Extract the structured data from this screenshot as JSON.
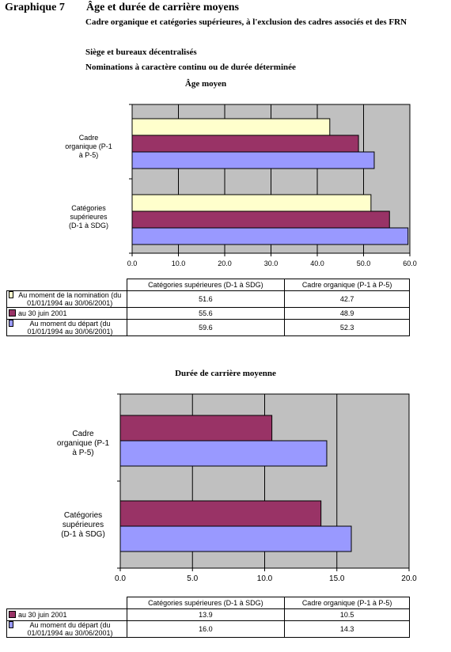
{
  "header": {
    "label": "Graphique 7",
    "title": "Âge et durée de carrière moyens",
    "subtitle_lines": [
      "Cadre organique et catégories supérieures, à l'exclusion des cadres associés et des FRN",
      "Siège et bureaux décentralisés",
      "Nominations à caractère continu ou de durée déterminée"
    ]
  },
  "colors": {
    "yellow": "#ffffcc",
    "maroon": "#993366",
    "lavender": "#9999ff",
    "plot_bg": "#c0c0c0"
  },
  "chart_data": [
    {
      "type": "bar",
      "orientation": "horizontal",
      "title": "Âge moyen",
      "categories": [
        "Cadre organique (P-1 à P-5)",
        "Catégories supérieures (D-1 à SDG)"
      ],
      "series": [
        {
          "name": "Au moment de la nomination (du 01/01/1994 au 30/06/2001)",
          "color": "#ffffcc",
          "values": {
            "Cadre organique (P-1 à P-5)": 42.7,
            "Catégories supérieures (D-1 à SDG)": 51.6
          }
        },
        {
          "name": "au 30 juin 2001",
          "color": "#993366",
          "values": {
            "Cadre organique (P-1 à P-5)": 48.9,
            "Catégories supérieures (D-1 à SDG)": 55.6
          }
        },
        {
          "name": "Au moment du départ (du 01/01/1994 au 30/06/2001)",
          "color": "#9999ff",
          "values": {
            "Cadre organique (P-1 à P-5)": 52.3,
            "Catégories supérieures (D-1 à SDG)": 59.6
          }
        }
      ],
      "xlim": [
        0,
        60
      ],
      "ticks": [
        "0.0",
        "10.0",
        "20.0",
        "30.0",
        "40.0",
        "50.0",
        "60.0"
      ],
      "tick_values": [
        0,
        10,
        20,
        30,
        40,
        50,
        60
      ],
      "table": {
        "headers": [
          "Catégories supérieures (D-1 à SDG)",
          "Cadre organique (P-1 à P-5)"
        ],
        "rows": [
          {
            "label": "Au moment de la nomination (du 01/01/1994 au 30/06/2001)",
            "color": "#ffffcc",
            "values": [
              "51.6",
              "42.7"
            ]
          },
          {
            "label": "au 30 juin 2001",
            "color": "#993366",
            "values": [
              "55.6",
              "48.9"
            ]
          },
          {
            "label": "Au moment du départ (du 01/01/1994 au 30/06/2001)",
            "color": "#9999ff",
            "values": [
              "59.6",
              "52.3"
            ]
          }
        ]
      }
    },
    {
      "type": "bar",
      "orientation": "horizontal",
      "title": "Durée de carrière moyenne",
      "categories": [
        "Cadre organique (P-1 à P-5)",
        "Catégories supérieures (D-1 à SDG)"
      ],
      "series": [
        {
          "name": "au 30 juin 2001",
          "color": "#993366",
          "values": {
            "Cadre organique (P-1 à P-5)": 10.5,
            "Catégories supérieures (D-1 à SDG)": 13.9
          }
        },
        {
          "name": "Au moment du départ (du 01/01/1994 au 30/06/2001)",
          "color": "#9999ff",
          "values": {
            "Cadre organique (P-1 à P-5)": 14.3,
            "Catégories supérieures (D-1 à SDG)": 16.0
          }
        }
      ],
      "xlim": [
        0,
        20
      ],
      "ticks": [
        "0.0",
        "5.0",
        "10.0",
        "15.0",
        "20.0"
      ],
      "tick_values": [
        0,
        5,
        10,
        15,
        20
      ],
      "table": {
        "headers": [
          "Catégories supérieures (D-1 à SDG)",
          "Cadre organique (P-1 à P-5)"
        ],
        "rows": [
          {
            "label": "au 30 juin 2001",
            "color": "#993366",
            "values": [
              "13.9",
              "10.5"
            ]
          },
          {
            "label": "Au moment du départ (du 01/01/1994 au 30/06/2001)",
            "color": "#9999ff",
            "values": [
              "16.0",
              "14.3"
            ]
          }
        ]
      }
    }
  ]
}
